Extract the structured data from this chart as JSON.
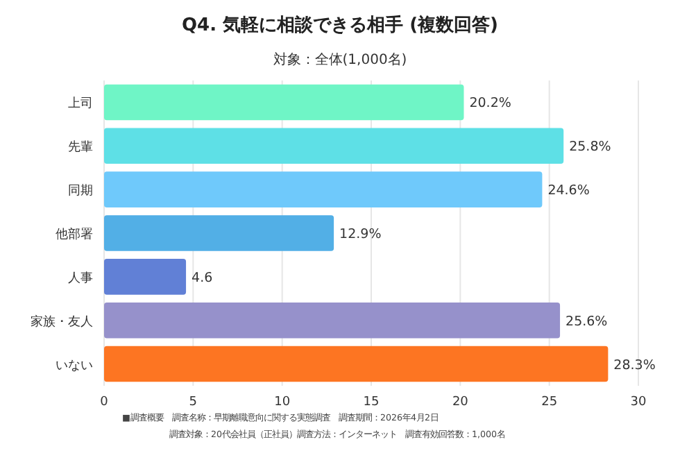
{
  "chart_data": {
    "type": "bar",
    "orientation": "horizontal",
    "title": "Q4. 気軽に相談できる相手 (複数回答)",
    "subtitle": "対象：全体(1,000名)",
    "categories": [
      "上司",
      "先輩",
      "同期",
      "他部署",
      "人事",
      "家族・友人",
      "いない"
    ],
    "values": [
      20.2,
      25.8,
      24.6,
      12.9,
      4.6,
      25.6,
      28.3
    ],
    "colors": [
      "#6ff5c6",
      "#5ee0e6",
      "#6fc9fb",
      "#52afe6",
      "#6180d6",
      "#9691cb",
      "#fd7522"
    ],
    "value_labels": [
      "20.2%",
      "25.8%",
      "24.6%",
      "12.9%",
      "4.6",
      "25.6%",
      "28.3%"
    ],
    "xlim": [
      0,
      30
    ],
    "xticks": [
      0,
      5,
      10,
      15,
      20,
      25,
      30
    ],
    "grid": "x",
    "annotations": [
      "■調査概要　調査名称：早期離職意向に関する実態調査　調査期間：2026年4月2日",
      "調査対象：20代会社員（正社員）調査方法：インターネット　調査有効回答数：1,000名"
    ]
  }
}
